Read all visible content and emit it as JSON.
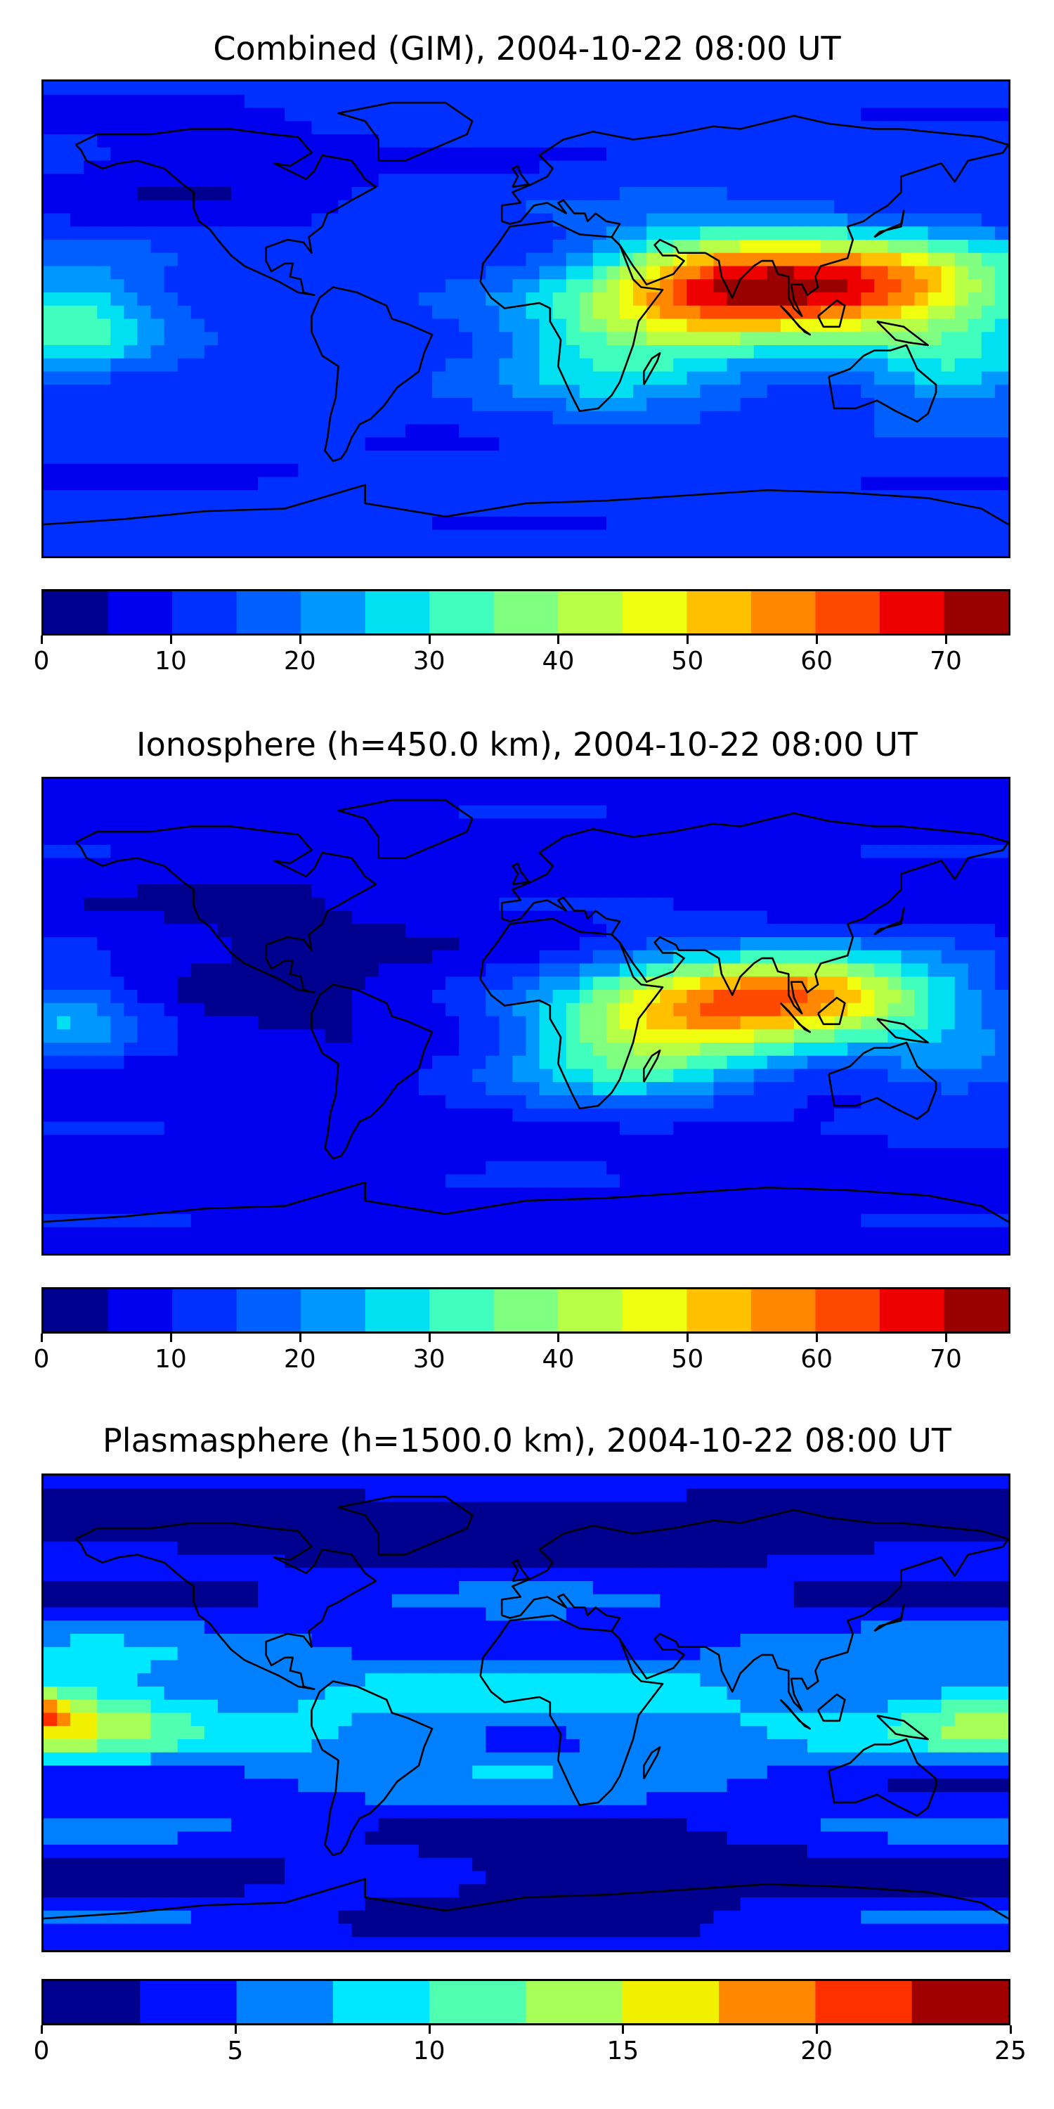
{
  "colors": {
    "levels_jet": [
      "#00008f",
      "#0000ef",
      "#0030ff",
      "#0060ff",
      "#0098ff",
      "#00e0f0",
      "#40ffbe",
      "#80ff80",
      "#b8ff48",
      "#f0ff10",
      "#ffc000",
      "#ff8800",
      "#ff4800",
      "#ee0000",
      "#990000"
    ],
    "levels_jet10": [
      "#00008f",
      "#0010ff",
      "#0080ff",
      "#00e8ff",
      "#50ffaf",
      "#a8ff58",
      "#f0f000",
      "#ff8800",
      "#ff3000",
      "#a00000"
    ]
  },
  "chart_data": [
    {
      "type": "heatmap",
      "name": "combined",
      "title": "Combined (GIM), 2004-10-22 08:00 UT",
      "projection": "equirectangular",
      "xlim": [
        -180,
        180
      ],
      "ylim": [
        -90,
        90
      ],
      "colorbar": {
        "min": 0,
        "max": 75,
        "step": 5,
        "ticks": [
          "0",
          "10",
          "20",
          "30",
          "40",
          "50",
          "60",
          "70"
        ]
      },
      "background_value": 12,
      "features": [
        {
          "lon": 125,
          "lat": 12,
          "value": 62,
          "sx": 60,
          "sy": 18
        },
        {
          "lon": 70,
          "lat": 12,
          "value": 44,
          "sx": 45,
          "sy": 22
        },
        {
          "lon": 30,
          "lat": -10,
          "value": 30,
          "sx": 45,
          "sy": 25
        },
        {
          "lon": -170,
          "lat": 0,
          "value": 33,
          "sx": 35,
          "sy": 20
        },
        {
          "lon": 160,
          "lat": -20,
          "value": 28,
          "sx": 35,
          "sy": 15
        },
        {
          "lon": -120,
          "lat": 55,
          "value": 5,
          "sx": 60,
          "sy": 20
        },
        {
          "lon": -60,
          "lat": -55,
          "value": 10,
          "sx": 80,
          "sy": 12
        }
      ]
    },
    {
      "type": "heatmap",
      "name": "ionosphere",
      "title": "Ionosphere  (h=450.0 km), 2004-10-22 08:00 UT",
      "projection": "equirectangular",
      "xlim": [
        -180,
        180
      ],
      "ylim": [
        -90,
        90
      ],
      "colorbar": {
        "min": 0,
        "max": 75,
        "step": 5,
        "ticks": [
          "0",
          "10",
          "20",
          "30",
          "40",
          "50",
          "60",
          "70"
        ]
      },
      "background_value": 8,
      "features": [
        {
          "lon": 110,
          "lat": 8,
          "value": 50,
          "sx": 55,
          "sy": 16
        },
        {
          "lon": 60,
          "lat": 0,
          "value": 36,
          "sx": 50,
          "sy": 22
        },
        {
          "lon": 30,
          "lat": -15,
          "value": 24,
          "sx": 45,
          "sy": 22
        },
        {
          "lon": -170,
          "lat": 0,
          "value": 25,
          "sx": 30,
          "sy": 15
        },
        {
          "lon": -90,
          "lat": 20,
          "value": 3,
          "sx": 55,
          "sy": 40
        },
        {
          "lon": 160,
          "lat": -20,
          "value": 20,
          "sx": 35,
          "sy": 15
        }
      ]
    },
    {
      "type": "heatmap",
      "name": "plasmasphere",
      "title": "Plasmasphere (h=1500.0 km), 2004-10-22 08:00 UT",
      "projection": "equirectangular",
      "xlim": [
        -180,
        180
      ],
      "ylim": [
        -90,
        90
      ],
      "colorbar": {
        "min": 0,
        "max": 25,
        "step": 2.5,
        "ticks": [
          "0",
          "5",
          "10",
          "15",
          "20",
          "25"
        ]
      },
      "background_value": 3,
      "features": [
        {
          "lon": 0,
          "lat": 0,
          "value": 7.5,
          "sx": 300,
          "sy": 30
        },
        {
          "lon": -170,
          "lat": 0,
          "value": 11,
          "sx": 40,
          "sy": 18
        },
        {
          "lon": -180,
          "lat": 0,
          "value": 10,
          "sx": 10,
          "sy": 8
        },
        {
          "lon": 180,
          "lat": 0,
          "value": 10,
          "sx": 40,
          "sy": 15
        },
        {
          "lon": -80,
          "lat": -15,
          "value": 4,
          "sx": 45,
          "sy": 18
        },
        {
          "lon": 60,
          "lat": 5,
          "value": 3.5,
          "sx": 40,
          "sy": 14
        },
        {
          "lon": 0,
          "lat": 70,
          "value": -2.5,
          "sx": 300,
          "sy": 10
        },
        {
          "lon": 30,
          "lat": -60,
          "value": -2.5,
          "sx": 60,
          "sy": 10
        }
      ]
    }
  ]
}
